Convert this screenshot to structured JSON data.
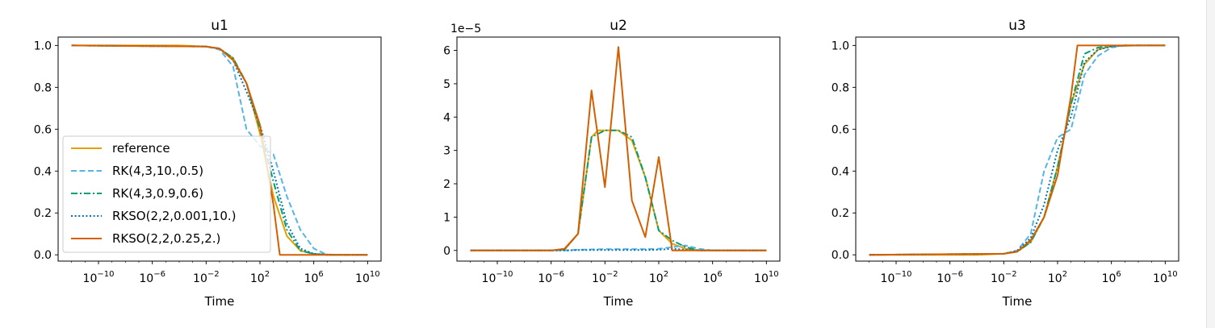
{
  "chart_data": [
    {
      "type": "line",
      "title": "u1",
      "xlabel": "Time",
      "ylabel": "",
      "xscale": "log",
      "xlim": [
        1e-13,
        100000000000.0
      ],
      "ylim": [
        -0.03,
        1.04
      ],
      "xticks": [
        {
          "value": 1e-10,
          "label": "10^-10"
        },
        {
          "value": 1e-06,
          "label": "10^-6"
        },
        {
          "value": 0.01,
          "label": "10^-2"
        },
        {
          "value": 100,
          "label": "10^2"
        },
        {
          "value": 1000000.0,
          "label": "10^6"
        },
        {
          "value": 10000000000.0,
          "label": "10^10"
        }
      ],
      "yticks": [
        {
          "value": 0.0,
          "label": "0.0"
        },
        {
          "value": 0.2,
          "label": "0.2"
        },
        {
          "value": 0.4,
          "label": "0.4"
        },
        {
          "value": 0.6,
          "label": "0.6"
        },
        {
          "value": 0.8,
          "label": "0.8"
        },
        {
          "value": 1.0,
          "label": "1.0"
        }
      ],
      "offset_label": "",
      "legend": {
        "placement": "lower-left"
      },
      "series": [
        {
          "name": "reference",
          "color": "#E69F00",
          "dash": "solid",
          "x": [
            1e-12,
            0.0001,
            0.01,
            0.1,
            1,
            10,
            100,
            1000,
            10000.0,
            100000.0,
            1000000.0,
            100000000.0,
            10000000000.0
          ],
          "y": [
            1.0,
            1.0,
            0.995,
            0.985,
            0.94,
            0.82,
            0.58,
            0.28,
            0.09,
            0.02,
            0.004,
            0.0,
            0.0
          ]
        },
        {
          "name": "RK(4,3,10.,0.5)",
          "color": "#56B4E9",
          "dash": "dashed",
          "x": [
            1e-12,
            0.01,
            0.1,
            1,
            10,
            100,
            1000,
            10000.0,
            100000.0,
            1000000.0,
            10000000.0,
            10000000000.0
          ],
          "y": [
            1.0,
            0.995,
            0.98,
            0.9,
            0.6,
            0.52,
            0.48,
            0.28,
            0.12,
            0.03,
            0.0,
            0.0
          ]
        },
        {
          "name": "RK(4,3,0.9,0.6)",
          "color": "#009E73",
          "dash": "dashdot",
          "x": [
            1e-12,
            0.01,
            0.1,
            1,
            10,
            100,
            1000,
            10000.0,
            100000.0,
            1000000.0,
            10000000.0,
            10000000000.0
          ],
          "y": [
            1.0,
            0.995,
            0.985,
            0.94,
            0.82,
            0.6,
            0.35,
            0.12,
            0.02,
            0.005,
            0.0,
            0.0
          ]
        },
        {
          "name": "RKSO(2,2,0.001,10.)",
          "color": "#0072B2",
          "dash": "dotted",
          "x": [
            1e-12,
            0.01,
            0.1,
            1,
            10,
            100,
            1000,
            10000.0,
            100000.0,
            1000000.0,
            10000000.0,
            10000000000.0
          ],
          "y": [
            1.0,
            0.995,
            0.985,
            0.93,
            0.78,
            0.62,
            0.4,
            0.15,
            0.03,
            0.005,
            0.0,
            0.0
          ]
        },
        {
          "name": "RKSO(2,2,0.25,2.)",
          "color": "#D55E00",
          "dash": "solid",
          "x": [
            1e-12,
            0.01,
            0.1,
            1,
            10,
            100,
            1000,
            3000,
            100000.0,
            10000000000.0
          ],
          "y": [
            1.0,
            0.995,
            0.985,
            0.93,
            0.82,
            0.62,
            0.24,
            0.0,
            0.0,
            0.0
          ]
        }
      ]
    },
    {
      "type": "line",
      "title": "u2",
      "xlabel": "Time",
      "ylabel": "",
      "xscale": "log",
      "xlim": [
        1e-13,
        100000000000.0
      ],
      "ylim": [
        -3.2e-06,
        6.4e-05
      ],
      "xticks": [
        {
          "value": 1e-10,
          "label": "10^-10"
        },
        {
          "value": 1e-06,
          "label": "10^-6"
        },
        {
          "value": 0.01,
          "label": "10^-2"
        },
        {
          "value": 100,
          "label": "10^2"
        },
        {
          "value": 1000000.0,
          "label": "10^6"
        },
        {
          "value": 10000000000.0,
          "label": "10^10"
        }
      ],
      "yticks": [
        {
          "value": 0,
          "label": "0"
        },
        {
          "value": 1e-05,
          "label": "1"
        },
        {
          "value": 2e-05,
          "label": "2"
        },
        {
          "value": 3e-05,
          "label": "3"
        },
        {
          "value": 4e-05,
          "label": "4"
        },
        {
          "value": 5e-05,
          "label": "5"
        },
        {
          "value": 6e-05,
          "label": "6"
        }
      ],
      "offset_label": "1e−5",
      "series": [
        {
          "name": "reference",
          "color": "#E69F00",
          "dash": "solid",
          "x": [
            1e-12,
            1e-06,
            1e-05,
            0.0001,
            0.001,
            0.003,
            0.01,
            0.1,
            1,
            10,
            100,
            1000,
            10000.0,
            100000.0,
            1000000.0,
            10000000000.0
          ],
          "y": [
            0,
            0,
            2e-07,
            5e-06,
            3.4e-05,
            3.6e-05,
            3.6e-05,
            3.6e-05,
            3.3e-05,
            2.2e-05,
            6e-06,
            2e-06,
            5e-07,
            0,
            0,
            0
          ]
        },
        {
          "name": "RK(4,3,10.,0.5)",
          "color": "#56B4E9",
          "dash": "dashed",
          "x": [
            1e-12,
            1e-05,
            0.0001,
            0.001,
            0.01,
            0.1,
            1,
            10,
            100,
            1000,
            10000.0,
            100000.0,
            1000000.0,
            10000000000.0
          ],
          "y": [
            0,
            0,
            2e-07,
            3e-07,
            4e-07,
            4e-07,
            4e-07,
            4e-07,
            5e-07,
            1e-06,
            1.5e-06,
            5e-07,
            0,
            0
          ]
        },
        {
          "name": "RK(4,3,0.9,0.6)",
          "color": "#009E73",
          "dash": "dashdot",
          "x": [
            1e-12,
            1e-06,
            1e-05,
            0.0001,
            0.001,
            0.01,
            0.1,
            1,
            10,
            100,
            1000,
            10000.0,
            100000.0,
            1000000.0,
            10000000000.0
          ],
          "y": [
            0,
            0,
            3e-07,
            5e-06,
            3.4e-05,
            3.6e-05,
            3.6e-05,
            3.4e-05,
            2.2e-05,
            6e-06,
            3e-06,
            1e-06,
            0,
            0,
            0
          ]
        },
        {
          "name": "RKSO(2,2,0.001,10.)",
          "color": "#0072B2",
          "dash": "dotted",
          "x": [
            1e-12,
            1e-05,
            0.0001,
            0.001,
            0.01,
            0.1,
            1,
            10,
            100,
            1000,
            10000.0,
            100000.0,
            1000000.0,
            10000000000.0
          ],
          "y": [
            0,
            0,
            1e-07,
            1e-07,
            1e-07,
            1e-07,
            1e-07,
            1e-07,
            2e-07,
            5e-07,
            2e-07,
            0,
            0,
            0
          ]
        },
        {
          "name": "RKSO(2,2,0.25,2.)",
          "color": "#D55E00",
          "dash": "solid",
          "x": [
            1e-12,
            1e-06,
            1e-05,
            0.0001,
            0.001,
            0.01,
            0.1,
            1,
            10,
            100,
            1000,
            10000.0,
            10000000000.0
          ],
          "y": [
            0,
            0,
            5e-07,
            5e-06,
            4.8e-05,
            1.9e-05,
            6.1e-05,
            1.5e-05,
            4e-06,
            2.8e-05,
            0,
            0,
            0
          ]
        }
      ]
    },
    {
      "type": "line",
      "title": "u3",
      "xlabel": "Time",
      "ylabel": "",
      "xscale": "log",
      "xlim": [
        1e-13,
        100000000000.0
      ],
      "ylim": [
        -0.03,
        1.04
      ],
      "xticks": [
        {
          "value": 1e-10,
          "label": "10^-10"
        },
        {
          "value": 1e-06,
          "label": "10^-6"
        },
        {
          "value": 0.01,
          "label": "10^-2"
        },
        {
          "value": 100,
          "label": "10^2"
        },
        {
          "value": 1000000.0,
          "label": "10^6"
        },
        {
          "value": 10000000000.0,
          "label": "10^10"
        }
      ],
      "yticks": [
        {
          "value": 0.0,
          "label": "0.0"
        },
        {
          "value": 0.2,
          "label": "0.2"
        },
        {
          "value": 0.4,
          "label": "0.4"
        },
        {
          "value": 0.6,
          "label": "0.6"
        },
        {
          "value": 0.8,
          "label": "0.8"
        },
        {
          "value": 1.0,
          "label": "1.0"
        }
      ],
      "offset_label": "",
      "series": [
        {
          "name": "reference",
          "color": "#E69F00",
          "dash": "solid",
          "x": [
            1e-12,
            0.0001,
            0.01,
            0.1,
            1,
            10,
            100,
            1000,
            10000.0,
            100000.0,
            1000000.0,
            100000000.0,
            10000000000.0
          ],
          "y": [
            0.0,
            0.0,
            0.005,
            0.015,
            0.06,
            0.18,
            0.42,
            0.72,
            0.91,
            0.98,
            0.996,
            1.0,
            1.0
          ]
        },
        {
          "name": "RK(4,3,10.,0.5)",
          "color": "#56B4E9",
          "dash": "dashed",
          "x": [
            1e-12,
            0.01,
            0.1,
            1,
            10,
            100,
            1000,
            10000.0,
            100000.0,
            1000000.0,
            10000000.0,
            10000000000.0
          ],
          "y": [
            0.0,
            0.005,
            0.02,
            0.1,
            0.4,
            0.56,
            0.6,
            0.86,
            0.95,
            0.99,
            1.0,
            1.0
          ]
        },
        {
          "name": "RK(4,3,0.9,0.6)",
          "color": "#009E73",
          "dash": "dashdot",
          "x": [
            1e-12,
            0.01,
            0.1,
            1,
            10,
            100,
            1000,
            10000.0,
            100000.0,
            1000000.0,
            10000000.0,
            10000000000.0
          ],
          "y": [
            0.0,
            0.005,
            0.015,
            0.06,
            0.18,
            0.42,
            0.72,
            0.96,
            0.99,
            0.997,
            1.0,
            1.0
          ]
        },
        {
          "name": "RKSO(2,2,0.001,10.)",
          "color": "#0072B2",
          "dash": "dotted",
          "x": [
            1e-12,
            0.01,
            0.1,
            1,
            10,
            100,
            1000,
            10000.0,
            100000.0,
            1000000.0,
            10000000.0,
            10000000000.0
          ],
          "y": [
            0.0,
            0.005,
            0.02,
            0.08,
            0.24,
            0.5,
            0.66,
            0.92,
            0.98,
            0.995,
            1.0,
            1.0
          ]
        },
        {
          "name": "RKSO(2,2,0.25,2.)",
          "color": "#D55E00",
          "dash": "solid",
          "x": [
            1e-12,
            0.01,
            0.1,
            1,
            10,
            100,
            1000,
            3000,
            100000.0,
            10000000000.0
          ],
          "y": [
            0.0,
            0.005,
            0.015,
            0.07,
            0.18,
            0.38,
            0.76,
            1.0,
            1.0,
            1.0
          ]
        }
      ]
    }
  ]
}
